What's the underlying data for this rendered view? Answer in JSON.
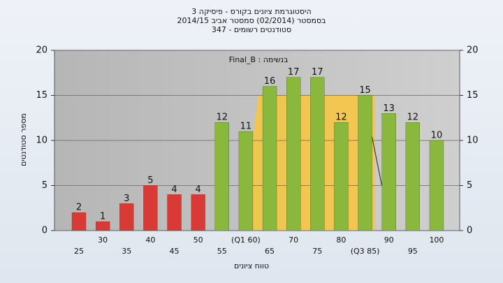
{
  "chart_data": {
    "type": "bar",
    "title": "היסטוגרמת ציונים בקורס - פיסיקה 3",
    "subtitle": "בסמסטר  (02/2014)  סמסטר אביב 2014/15",
    "subtitle2": "סטודנטים רשומים - 347",
    "annotation": "בנשימה : Final_B",
    "x_label": "טווח ציונים",
    "y_label": "מספר סטודנטים",
    "categories": [
      "25",
      "30",
      "35",
      "40",
      "45",
      "50",
      "55",
      "(Q1 60)",
      "65",
      "70",
      "75",
      "80",
      "(Q3 85)",
      "90",
      "95",
      "100"
    ],
    "values": [
      2,
      1,
      3,
      5,
      4,
      4,
      12,
      11,
      16,
      17,
      17,
      12,
      15,
      13,
      12,
      10
    ],
    "colors": [
      "#d93a35",
      "#d93a35",
      "#d93a35",
      "#d93a35",
      "#d93a35",
      "#d93a35",
      "#8ab83c",
      "#8ab83c",
      "#8ab83c",
      "#8ab83c",
      "#8ab83c",
      "#8ab83c",
      "#8ab83c",
      "#8ab83c",
      "#8ab83c",
      "#8ab83c"
    ],
    "ylim": [
      0,
      20
    ],
    "yticks": [
      0,
      5,
      10,
      15,
      20
    ],
    "y2lim": [
      0,
      20
    ],
    "y2ticks": [
      0,
      5,
      10,
      15,
      20
    ],
    "grid": true
  }
}
